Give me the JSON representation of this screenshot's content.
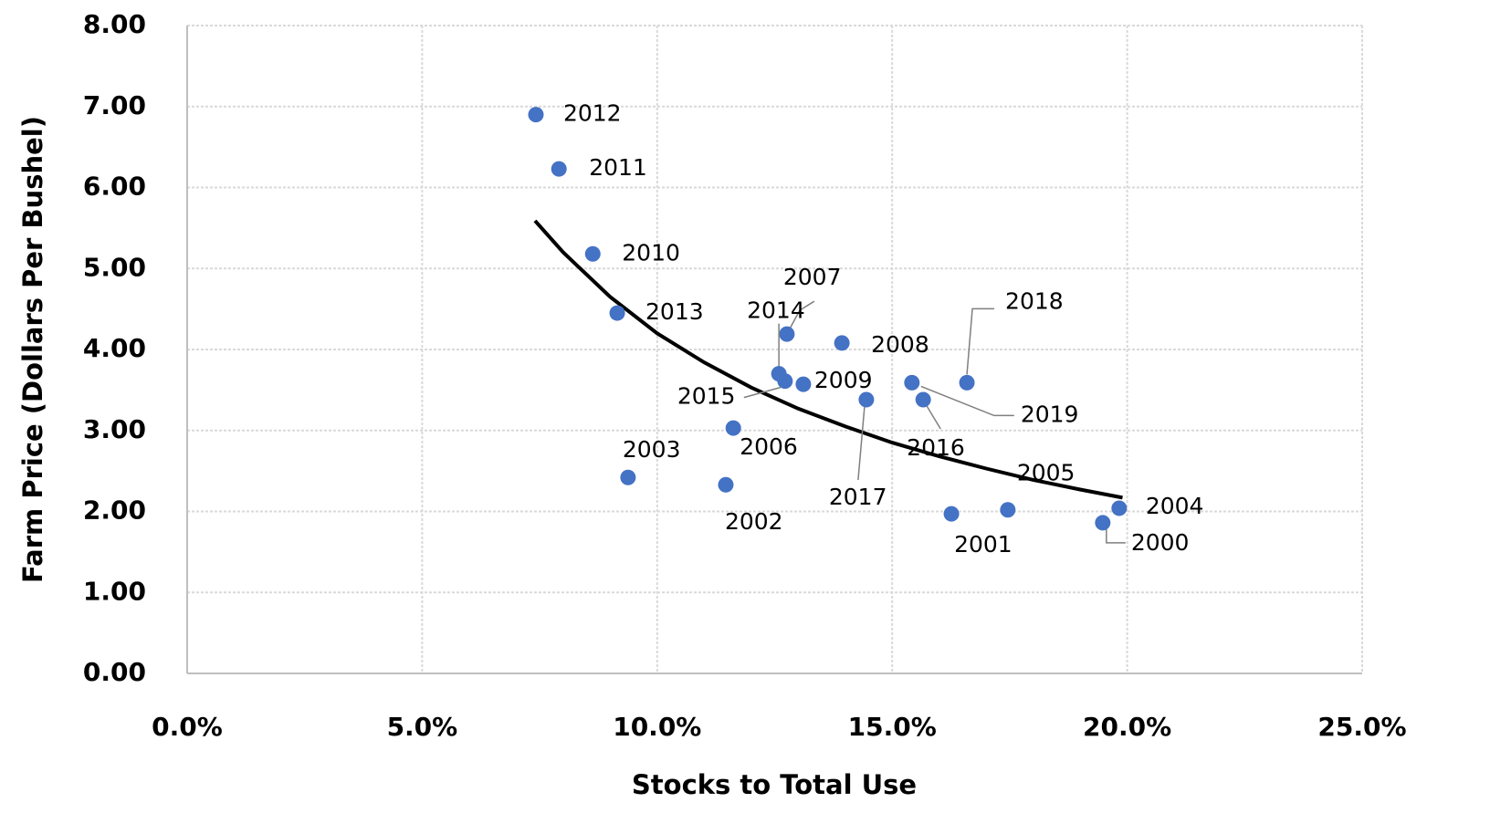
{
  "chart_data": {
    "type": "scatter",
    "x_label": "Stocks to Total Use",
    "y_label": "Farm Price (Dollars Per Bushel)",
    "labels": [
      "2012",
      "2011",
      "2010",
      "2013",
      "2007",
      "2014",
      "2015",
      "2009",
      "2008",
      "2017",
      "2019",
      "2016",
      "2018",
      "2006",
      "2003",
      "2002",
      "2001",
      "2005",
      "2004",
      "2000"
    ],
    "x": [
      7.42,
      7.91,
      8.63,
      9.15,
      12.76,
      12.59,
      12.72,
      13.11,
      13.93,
      14.45,
      15.42,
      15.66,
      16.59,
      11.62,
      9.38,
      11.46,
      16.26,
      17.46,
      19.83,
      19.48
    ],
    "values": [
      6.9,
      6.23,
      5.18,
      4.45,
      4.19,
      3.7,
      3.61,
      3.57,
      4.08,
      3.38,
      3.59,
      3.38,
      3.59,
      3.03,
      2.42,
      2.33,
      1.97,
      2.02,
      2.04,
      1.86
    ],
    "color": "#4472c4",
    "trendline": {
      "x": [
        7.4,
        8,
        9,
        10,
        11,
        12,
        13,
        14,
        15,
        16,
        17,
        18,
        19,
        19.9
      ],
      "values": [
        5.59,
        5.2,
        4.65,
        4.2,
        3.84,
        3.53,
        3.27,
        3.05,
        2.85,
        2.68,
        2.53,
        2.39,
        2.27,
        2.17
      ],
      "color": "#000000"
    },
    "xlim": [
      0,
      25
    ],
    "xticks": [
      {
        "value": 0,
        "label": "0.0%"
      },
      {
        "value": 5,
        "label": "5.0%"
      },
      {
        "value": 10,
        "label": "10.0%"
      },
      {
        "value": 15,
        "label": "15.0%"
      },
      {
        "value": 20,
        "label": "20.0%"
      },
      {
        "value": 25,
        "label": "25.0%"
      }
    ],
    "ylim": [
      0,
      8
    ],
    "yticks": [
      {
        "value": 0,
        "label": "0.00"
      },
      {
        "value": 1,
        "label": "1.00"
      },
      {
        "value": 2,
        "label": "2.00"
      },
      {
        "value": 3,
        "label": "3.00"
      },
      {
        "value": 4,
        "label": "4.00"
      },
      {
        "value": 5,
        "label": "5.00"
      },
      {
        "value": 6,
        "label": "6.00"
      },
      {
        "value": 7,
        "label": "7.00"
      },
      {
        "value": 8,
        "label": "8.00"
      }
    ],
    "grid": true
  }
}
